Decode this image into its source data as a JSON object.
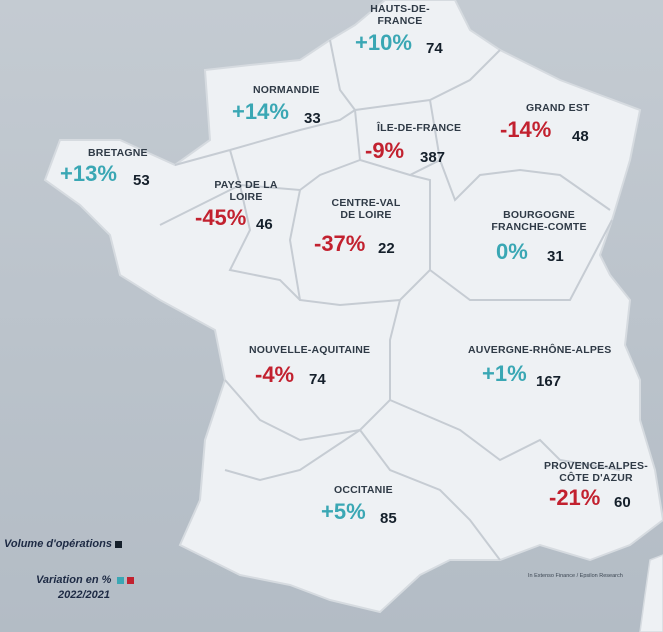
{
  "colors": {
    "positive": "#3aa7b4",
    "negative": "#c2212f",
    "volume": "#15202b",
    "map_fill": "#eef1f4",
    "border": "#c9cfd6"
  },
  "regions": [
    {
      "id": "hauts-de-france",
      "label": "HAUTS-DE-\nFRANCE",
      "variation": "+10%",
      "volume": "74",
      "sign": "pos"
    },
    {
      "id": "normandie",
      "label": "NORMANDIE",
      "variation": "+14%",
      "volume": "33",
      "sign": "pos"
    },
    {
      "id": "ile-de-france",
      "label": "ÎLE-DE-FRANCE",
      "variation": "-9%",
      "volume": "387",
      "sign": "neg"
    },
    {
      "id": "grand-est",
      "label": "GRAND EST",
      "variation": "-14%",
      "volume": "48",
      "sign": "neg"
    },
    {
      "id": "bretagne",
      "label": "BRETAGNE",
      "variation": "+13%",
      "volume": "53",
      "sign": "pos"
    },
    {
      "id": "pays-de-la-loire",
      "label": "PAYS DE LA\nLOIRE",
      "variation": "-45%",
      "volume": "46",
      "sign": "neg"
    },
    {
      "id": "centre-val-de-loire",
      "label": "CENTRE-VAL\nDE LOIRE",
      "variation": "-37%",
      "volume": "22",
      "sign": "neg"
    },
    {
      "id": "bourgogne-franche-comte",
      "label": "BOURGOGNE\nFRANCHE-COMTE",
      "variation": "0%",
      "volume": "31",
      "sign": "pos"
    },
    {
      "id": "nouvelle-aquitaine",
      "label": "NOUVELLE-AQUITAINE",
      "variation": "-4%",
      "volume": "74",
      "sign": "neg"
    },
    {
      "id": "auvergne-rhone-alpes",
      "label": "AUVERGNE-RHÔNE-ALPES",
      "variation": "+1%",
      "volume": "167",
      "sign": "pos"
    },
    {
      "id": "occitanie",
      "label": "OCCITANIE",
      "variation": "+5%",
      "volume": "85",
      "sign": "pos"
    },
    {
      "id": "provence-alpes-cote-d-azur",
      "label": "PROVENCE-ALPES-\nCÔTE D'AZUR",
      "variation": "-21%",
      "volume": "60",
      "sign": "neg"
    }
  ],
  "legend": {
    "volume_label": "Volume d'opérations",
    "variation_label": "Variation en %",
    "period": "2022/2021"
  },
  "source": "In Extenso Finance / Epsilon Research"
}
